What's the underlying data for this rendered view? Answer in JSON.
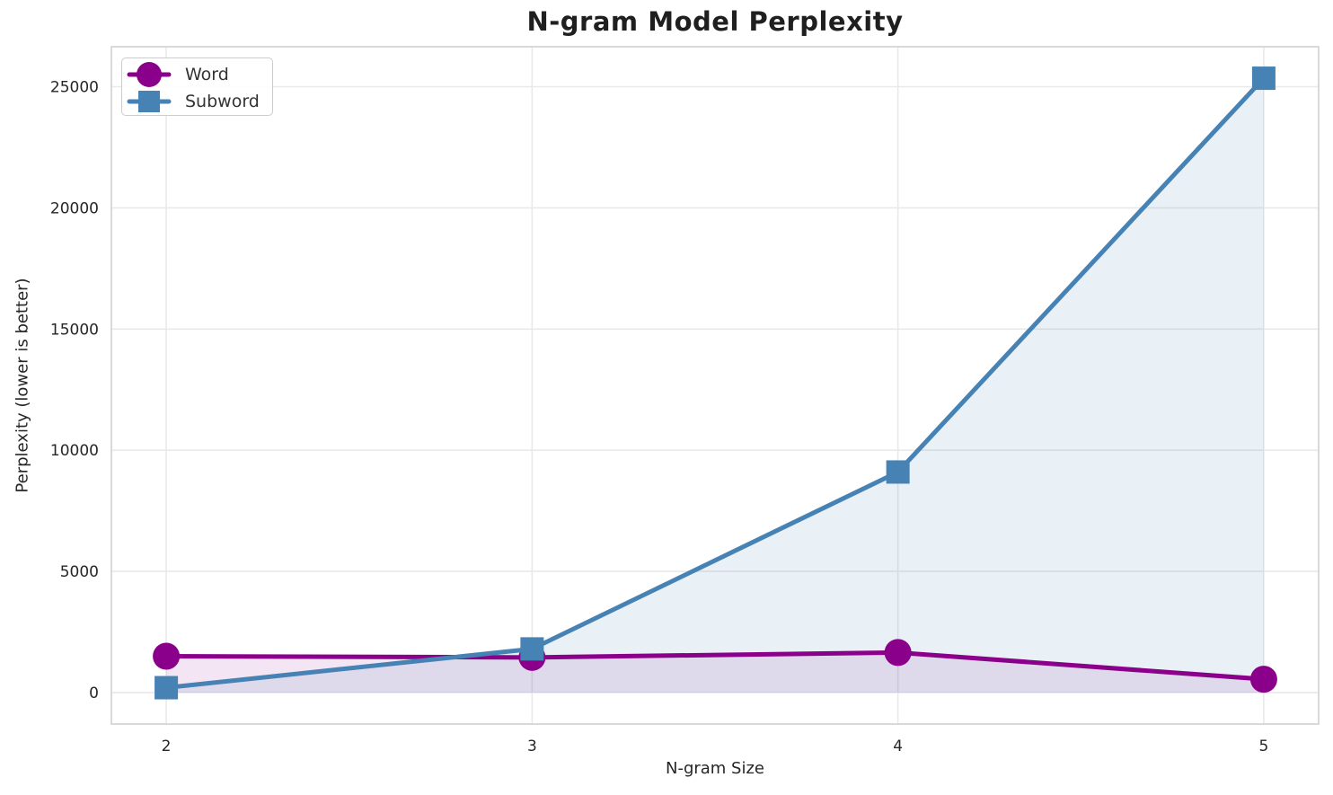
{
  "chart_data": {
    "type": "line",
    "title": "N-gram Model Perplexity",
    "xlabel": "N-gram Size",
    "ylabel": "Perplexity (lower is better)",
    "x": [
      2,
      3,
      4,
      5
    ],
    "series": [
      {
        "name": "Word",
        "values": [
          1500,
          1450,
          1650,
          550
        ],
        "color": "#8B008B",
        "marker": "circle",
        "fill_alpha": 0.1
      },
      {
        "name": "Subword",
        "values": [
          200,
          1800,
          9100,
          25350
        ],
        "color": "#4682B4",
        "marker": "square",
        "fill_alpha": 0.12
      }
    ],
    "xticks": [
      2,
      3,
      4,
      5
    ],
    "yticks": [
      0,
      5000,
      10000,
      15000,
      20000,
      25000
    ],
    "xlim": [
      1.85,
      5.15
    ],
    "ylim": [
      -1300,
      26650
    ],
    "grid": true,
    "area_fill": true,
    "fill_baseline": 0,
    "legend_position": "upper-left"
  },
  "style": {
    "grid_color": "#e9e9e9",
    "spine_color": "#d5d5d5",
    "tick_color": "#262626",
    "title_color": "#1f1f1f",
    "legend_border": "#cccccc",
    "background": "#ffffff"
  }
}
